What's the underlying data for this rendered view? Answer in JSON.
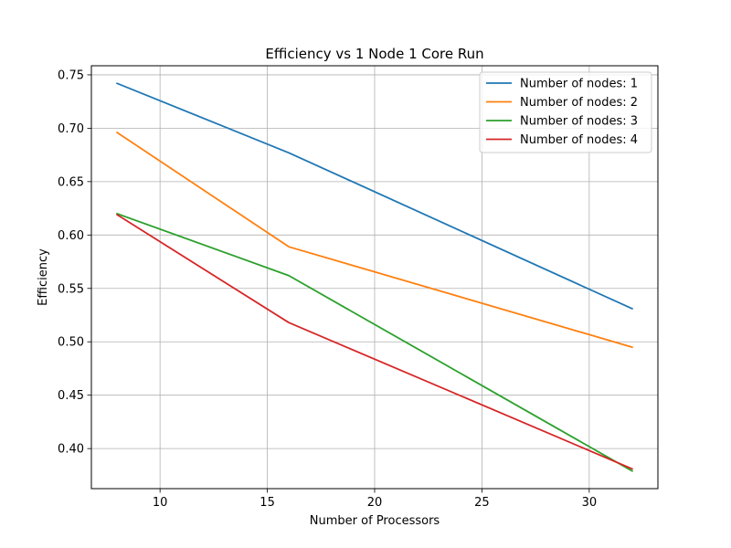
{
  "chart_data": {
    "type": "line",
    "title": "Efficiency vs 1 Node 1 Core Run",
    "xlabel": "Number of Processors",
    "ylabel": "Efficiency",
    "x": [
      8,
      16,
      32
    ],
    "xlim": [
      6.8,
      33.2
    ],
    "ylim": [
      0.3625,
      0.7585
    ],
    "xticks": [
      10,
      15,
      20,
      25,
      30
    ],
    "yticks": [
      0.4,
      0.45,
      0.5,
      0.55,
      0.6,
      0.65,
      0.7,
      0.75
    ],
    "xtick_labels": [
      "10",
      "15",
      "20",
      "25",
      "30"
    ],
    "ytick_labels": [
      "0.40",
      "0.45",
      "0.50",
      "0.55",
      "0.60",
      "0.65",
      "0.70",
      "0.75"
    ],
    "grid": true,
    "legend_position": "top-right",
    "series": [
      {
        "name": "Number of nodes: 1",
        "color": "#1f77b4",
        "values": [
          0.742,
          0.677,
          0.531
        ]
      },
      {
        "name": "Number of nodes: 2",
        "color": "#ff7f0e",
        "values": [
          0.696,
          0.589,
          0.495
        ]
      },
      {
        "name": "Number of nodes: 3",
        "color": "#2ca02c",
        "values": [
          0.62,
          0.562,
          0.379
        ]
      },
      {
        "name": "Number of nodes: 4",
        "color": "#d62728",
        "values": [
          0.619,
          0.518,
          0.381
        ]
      }
    ]
  }
}
